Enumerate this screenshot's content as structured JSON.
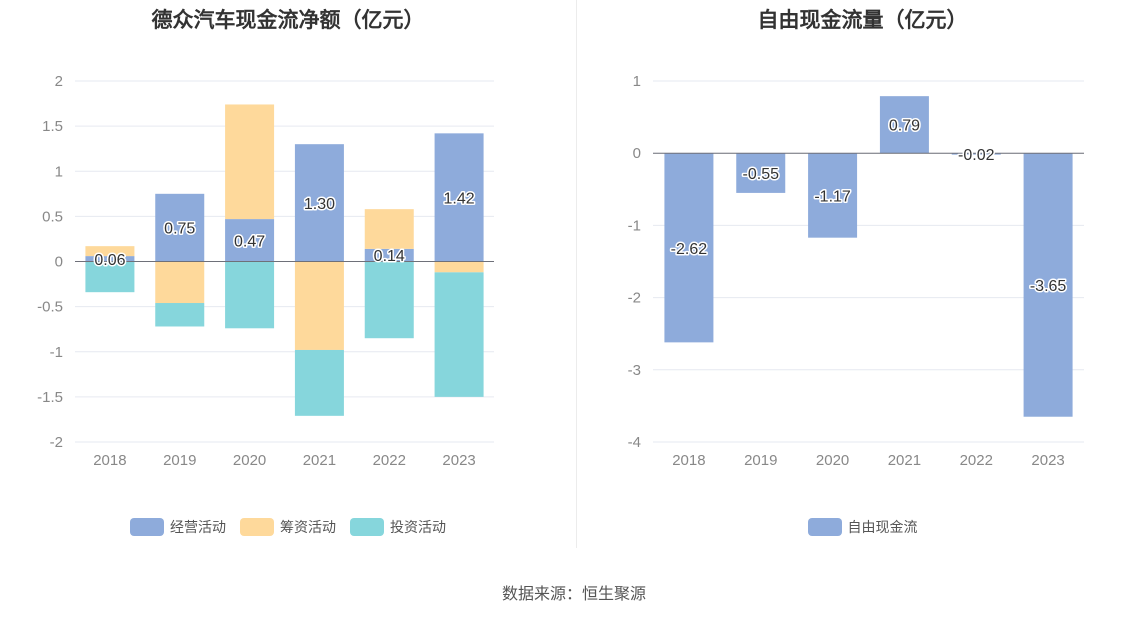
{
  "source": "数据来源：恒生聚源",
  "chart_data": [
    {
      "type": "bar",
      "stacked": true,
      "title": "德众汽车现金流净额（亿元）",
      "categories": [
        "2018",
        "2019",
        "2020",
        "2021",
        "2022",
        "2023"
      ],
      "ylim": [
        -2,
        2
      ],
      "yticks": [
        "2",
        "1.5",
        "1",
        "0.5",
        "0",
        "-0.5",
        "-1",
        "-1.5",
        "-2"
      ],
      "series": [
        {
          "name": "经营活动",
          "color": "#8eabdb",
          "values": [
            0.06,
            0.75,
            0.47,
            1.3,
            0.14,
            1.42
          ]
        },
        {
          "name": "筹资活动",
          "color": "#fed99b",
          "values": [
            0.11,
            -0.46,
            1.27,
            -0.98,
            0.44,
            -0.12
          ]
        },
        {
          "name": "投资活动",
          "color": "#86d6dc",
          "values": [
            -0.34,
            -0.26,
            -0.74,
            -0.73,
            -0.85,
            -1.38
          ]
        }
      ],
      "data_labels": [
        "0.06",
        "0.75",
        "0.47",
        "1.30",
        "0.14",
        "1.42"
      ],
      "grid": true,
      "legend_position": "bottom"
    },
    {
      "type": "bar",
      "title": "自由现金流量（亿元）",
      "categories": [
        "2018",
        "2019",
        "2020",
        "2021",
        "2022",
        "2023"
      ],
      "ylim": [
        -4,
        1
      ],
      "yticks": [
        "1",
        "0",
        "-1",
        "-2",
        "-3",
        "-4"
      ],
      "series": [
        {
          "name": "自由现金流",
          "color": "#8eabdb",
          "values": [
            -2.62,
            -0.55,
            -1.17,
            0.79,
            -0.02,
            -3.65
          ]
        }
      ],
      "data_labels": [
        "-2.62",
        "-0.55",
        "-1.17",
        "0.79",
        "-0.02",
        "-3.65"
      ],
      "grid": true,
      "legend_position": "bottom"
    }
  ]
}
